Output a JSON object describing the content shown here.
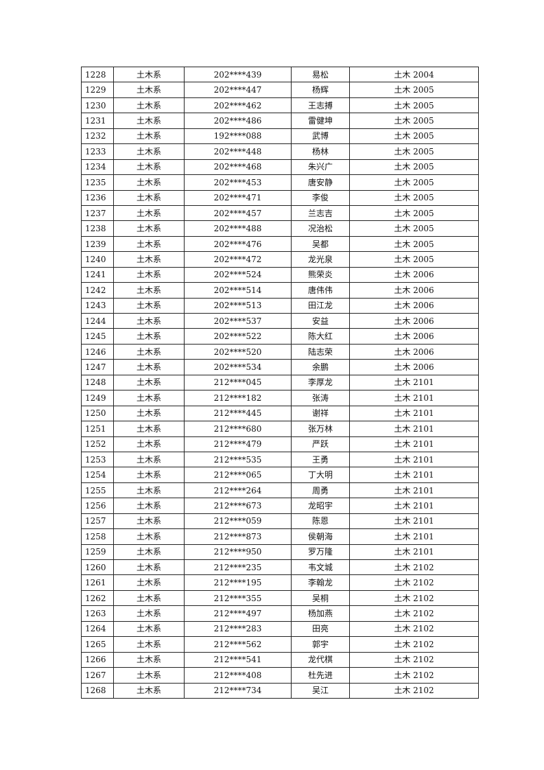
{
  "table": {
    "rows": [
      [
        "1228",
        "土木系",
        "202****439",
        "易松",
        "土木 2004"
      ],
      [
        "1229",
        "土木系",
        "202****447",
        "杨辉",
        "土木 2005"
      ],
      [
        "1230",
        "土木系",
        "202****462",
        "王志搏",
        "土木 2005"
      ],
      [
        "1231",
        "土木系",
        "202****486",
        "雷健坤",
        "土木 2005"
      ],
      [
        "1232",
        "土木系",
        "192****088",
        "武博",
        "土木 2005"
      ],
      [
        "1233",
        "土木系",
        "202****448",
        "杨林",
        "土木 2005"
      ],
      [
        "1234",
        "土木系",
        "202****468",
        "朱兴广",
        "土木 2005"
      ],
      [
        "1235",
        "土木系",
        "202****453",
        "唐安静",
        "土木 2005"
      ],
      [
        "1236",
        "土木系",
        "202****471",
        "李俊",
        "土木 2005"
      ],
      [
        "1237",
        "土木系",
        "202****457",
        "兰志吉",
        "土木 2005"
      ],
      [
        "1238",
        "土木系",
        "202****488",
        "况治松",
        "土木 2005"
      ],
      [
        "1239",
        "土木系",
        "202****476",
        "吴都",
        "土木 2005"
      ],
      [
        "1240",
        "土木系",
        "202****472",
        "龙光泉",
        "土木 2005"
      ],
      [
        "1241",
        "土木系",
        "202****524",
        "熊荣炎",
        "土木 2006"
      ],
      [
        "1242",
        "土木系",
        "202****514",
        "唐伟伟",
        "土木 2006"
      ],
      [
        "1243",
        "土木系",
        "202****513",
        "田江龙",
        "土木 2006"
      ],
      [
        "1244",
        "土木系",
        "202****537",
        "安益",
        "土木 2006"
      ],
      [
        "1245",
        "土木系",
        "202****522",
        "陈大红",
        "土木 2006"
      ],
      [
        "1246",
        "土木系",
        "202****520",
        "陆志荣",
        "土木 2006"
      ],
      [
        "1247",
        "土木系",
        "202****534",
        "余鹏",
        "土木 2006"
      ],
      [
        "1248",
        "土木系",
        "212****045",
        "李厚龙",
        "土木 2101"
      ],
      [
        "1249",
        "土木系",
        "212****182",
        "张涛",
        "土木 2101"
      ],
      [
        "1250",
        "土木系",
        "212****445",
        "谢祥",
        "土木 2101"
      ],
      [
        "1251",
        "土木系",
        "212****680",
        "张万林",
        "土木 2101"
      ],
      [
        "1252",
        "土木系",
        "212****479",
        "严跃",
        "土木 2101"
      ],
      [
        "1253",
        "土木系",
        "212****535",
        "王勇",
        "土木 2101"
      ],
      [
        "1254",
        "土木系",
        "212****065",
        "丁大明",
        "土木 2101"
      ],
      [
        "1255",
        "土木系",
        "212****264",
        "周勇",
        "土木 2101"
      ],
      [
        "1256",
        "土木系",
        "212****673",
        "龙昭宇",
        "土木 2101"
      ],
      [
        "1257",
        "土木系",
        "212****059",
        "陈恩",
        "土木 2101"
      ],
      [
        "1258",
        "土木系",
        "212****873",
        "侯朝海",
        "土木 2101"
      ],
      [
        "1259",
        "土木系",
        "212****950",
        "罗万隆",
        "土木 2101"
      ],
      [
        "1260",
        "土木系",
        "212****235",
        "韦文城",
        "土木 2102"
      ],
      [
        "1261",
        "土木系",
        "212****195",
        "李翰龙",
        "土木 2102"
      ],
      [
        "1262",
        "土木系",
        "212****355",
        "吴桐",
        "土木 2102"
      ],
      [
        "1263",
        "土木系",
        "212****497",
        "杨加燕",
        "土木 2102"
      ],
      [
        "1264",
        "土木系",
        "212****283",
        "田亮",
        "土木 2102"
      ],
      [
        "1265",
        "土木系",
        "212****562",
        "郭宇",
        "土木 2102"
      ],
      [
        "1266",
        "土木系",
        "212****541",
        "龙代棋",
        "土木 2102"
      ],
      [
        "1267",
        "土木系",
        "212****408",
        "杜先进",
        "土木 2102"
      ],
      [
        "1268",
        "土木系",
        "212****734",
        "吴江",
        "土木 2102"
      ]
    ]
  }
}
